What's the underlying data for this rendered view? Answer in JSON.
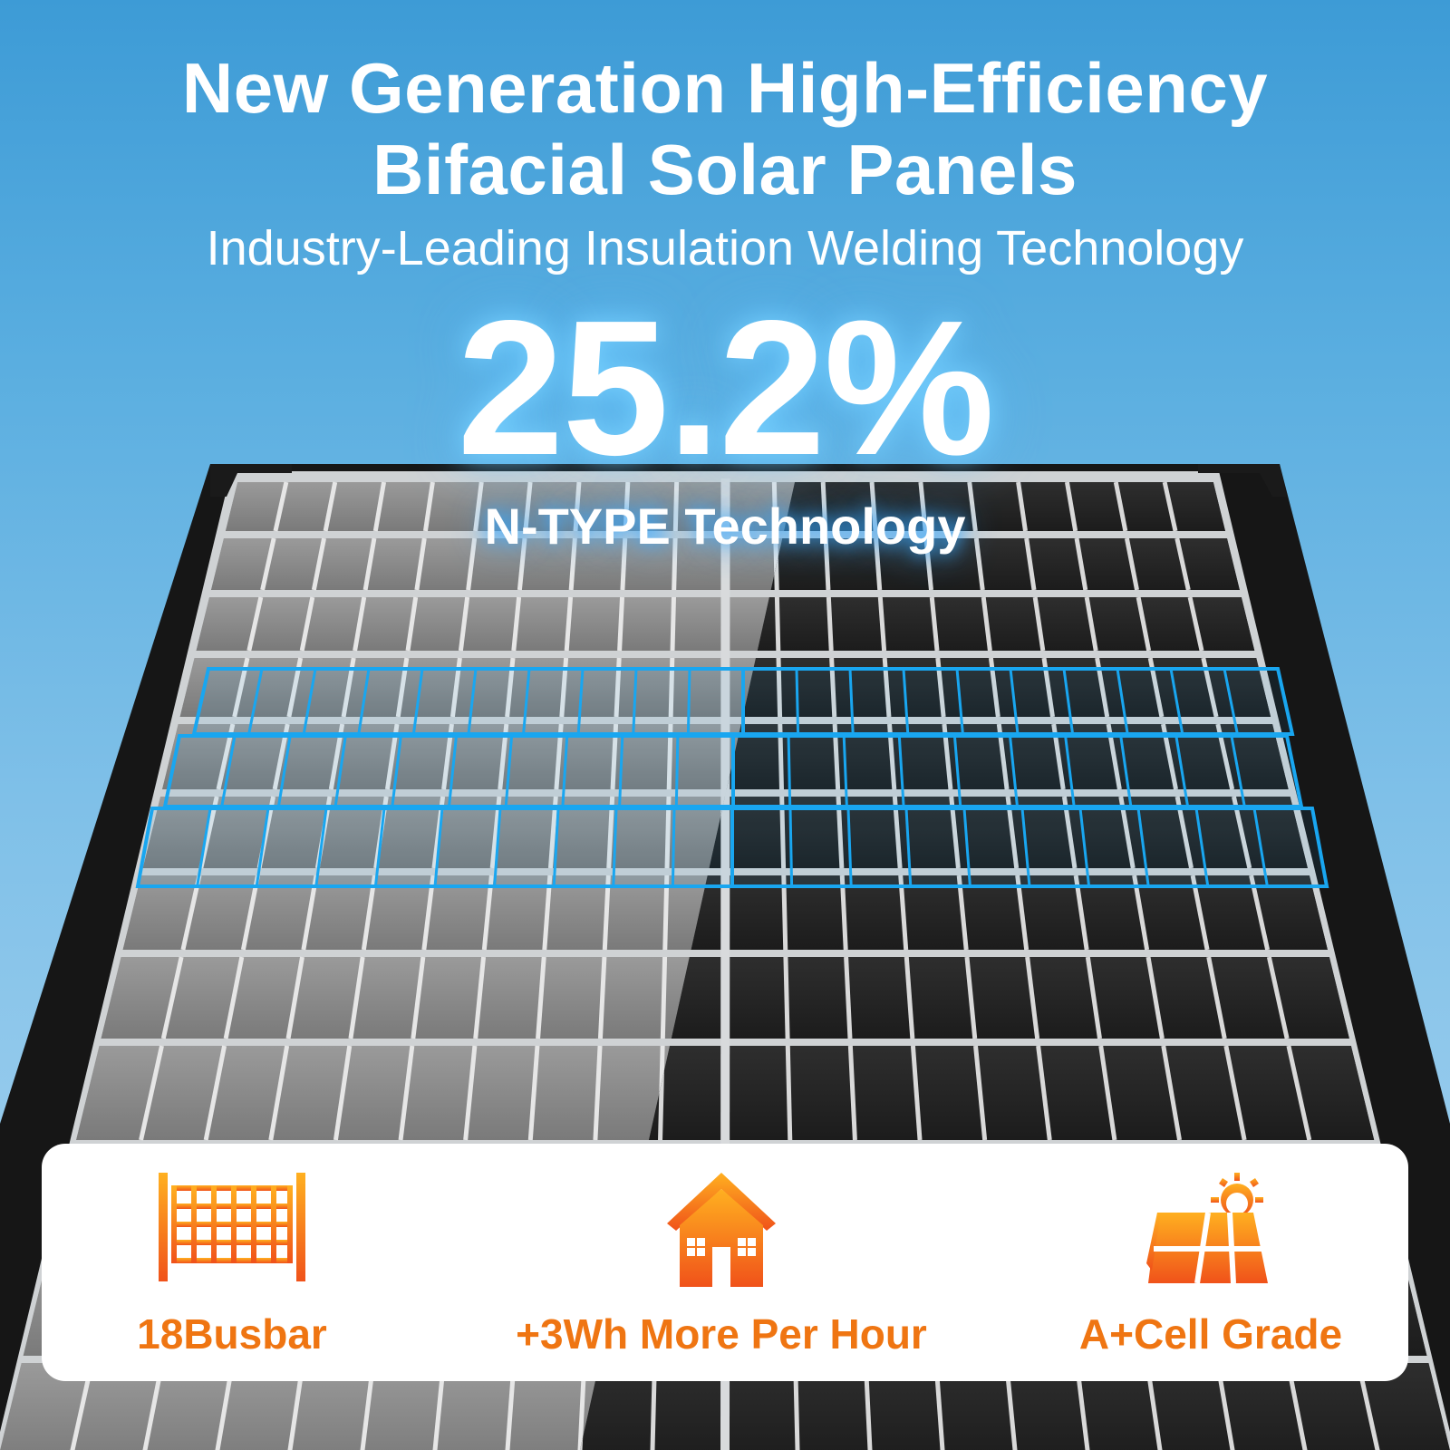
{
  "header": {
    "title_line1": "New Generation High-Efficiency",
    "title_line2": "Bifacial Solar Panels",
    "subtitle": "Industry-Leading Insulation Welding Technology",
    "efficiency": "25.2%",
    "technology": "N-TYPE Technology"
  },
  "features": [
    {
      "icon": "grid-fence-icon",
      "label": "18Busbar"
    },
    {
      "icon": "house-icon",
      "label": "+3Wh More Per Hour"
    },
    {
      "icon": "solar-panel-sun-icon",
      "label": "A+Cell Grade"
    }
  ],
  "colors": {
    "sky_top": "#3d9bd6",
    "sky_bottom": "#a9d4f0",
    "feature_orange": "#ef7512",
    "highlight_blue": "#19a6f0"
  }
}
